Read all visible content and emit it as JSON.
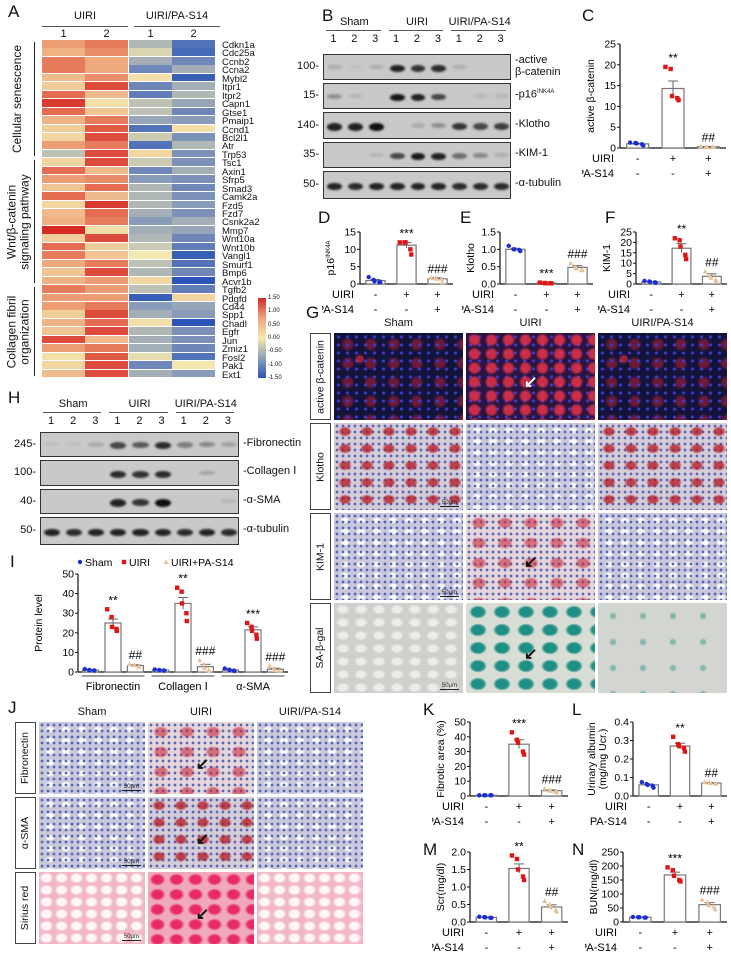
{
  "panels": {
    "A": "A",
    "B": "B",
    "C": "C",
    "D": "D",
    "E": "E",
    "F": "F",
    "G": "G",
    "H": "H",
    "I": "I",
    "J": "J",
    "K": "K",
    "L": "L",
    "M": "M",
    "N": "N"
  },
  "heatmap": {
    "groups": [
      "UIRI",
      "UIRI/PA-S14"
    ],
    "columns": [
      "1",
      "2",
      "1",
      "2"
    ],
    "sections": [
      {
        "label": "Cellular senescence",
        "rows": 14
      },
      {
        "label": "Wnt/β-catenin signaling pathway",
        "rows": 15
      },
      {
        "label": "Collagen fibril organization",
        "rows": 11
      }
    ],
    "colorbar": {
      "ticks": [
        "1.50",
        "1.00",
        "0.50",
        "0.00",
        "-0.50",
        "-1.00",
        "-1.50"
      ],
      "range": [
        -1.5,
        1.5
      ],
      "colors": [
        "#2b55b8",
        "#8fa0b8",
        "#f3e8b0",
        "#eea57a",
        "#d62a24"
      ]
    },
    "genes": [
      "Cdkn1a",
      "Cdc25a",
      "Ccnb2",
      "Ccna2",
      "Mybl2",
      "Itpr1",
      "Itpr2",
      "Capn1",
      "Gtse1",
      "Pmaip1",
      "Ccnd1",
      "Bcl2l1",
      "Atr",
      "Trp53",
      "Tsc1",
      "Axin1",
      "Sfrp5",
      "Smad3",
      "Camk2a",
      "Fzd5",
      "Fzd7",
      "Csnk2a2",
      "Mmp7",
      "Wnt10a",
      "Wnt10b",
      "Vangl1",
      "Smurf1",
      "Bmp6",
      "Acvr1b",
      "Tgfb2",
      "Pdgfd",
      "Cd44",
      "Spp1",
      "Chadl",
      "Egfr",
      "Jun",
      "Zmiz1",
      "Fosl2",
      "Pak1",
      "Ext1"
    ],
    "values": [
      [
        0.8,
        1.0,
        -0.5,
        -1.2
      ],
      [
        0.6,
        0.9,
        -0.2,
        -1.3
      ],
      [
        1.0,
        0.7,
        -0.6,
        -1.0
      ],
      [
        1.0,
        0.7,
        -1.0,
        -0.6
      ],
      [
        0.5,
        0.9,
        0.1,
        -1.4
      ],
      [
        0.3,
        1.3,
        -1.0,
        -0.6
      ],
      [
        1.1,
        0.5,
        -1.1,
        -0.5
      ],
      [
        1.4,
        0.1,
        -0.4,
        -0.7
      ],
      [
        1.1,
        0.4,
        -0.4,
        -1.0
      ],
      [
        0.6,
        1.0,
        -0.7,
        -0.8
      ],
      [
        0.3,
        1.2,
        -1.2,
        0.1
      ],
      [
        0.2,
        1.3,
        -0.3,
        -0.9
      ],
      [
        0.8,
        1.0,
        -1.2,
        -0.5
      ],
      [
        -0.4,
        1.3,
        0.2,
        -0.9
      ],
      [
        0.2,
        1.3,
        -0.3,
        -0.9
      ],
      [
        1.1,
        0.5,
        -1.0,
        -0.6
      ],
      [
        0.8,
        0.9,
        -0.8,
        -0.9
      ],
      [
        0.4,
        1.1,
        -0.5,
        -1.0
      ],
      [
        1.1,
        0.5,
        -0.5,
        -0.9
      ],
      [
        0.2,
        1.4,
        -0.5,
        -0.8
      ],
      [
        0.5,
        1.1,
        -0.6,
        -0.9
      ],
      [
        0.6,
        1.0,
        -0.8,
        -0.6
      ],
      [
        1.5,
        0.1,
        -0.6,
        -0.7
      ],
      [
        0.3,
        1.3,
        -0.5,
        -1.0
      ],
      [
        1.1,
        0.3,
        -0.3,
        -1.1
      ],
      [
        1.0,
        0.4,
        0.0,
        -1.4
      ],
      [
        0.7,
        1.0,
        -0.4,
        -1.2
      ],
      [
        0.4,
        1.3,
        -0.5,
        -1.0
      ],
      [
        0.6,
        0.8,
        0.2,
        -1.5
      ],
      [
        1.0,
        0.8,
        -0.4,
        -1.1
      ],
      [
        0.8,
        0.8,
        -1.4,
        0.2
      ],
      [
        0.8,
        1.0,
        -0.8,
        -0.7
      ],
      [
        0.3,
        1.3,
        -0.6,
        -0.8
      ],
      [
        0.6,
        1.1,
        0.1,
        -1.5
      ],
      [
        0.4,
        1.3,
        -0.5,
        -0.9
      ],
      [
        1.3,
        0.5,
        -0.6,
        -0.9
      ],
      [
        0.8,
        1.0,
        -0.6,
        -1.0
      ],
      [
        0.1,
        1.2,
        -0.1,
        -1.2
      ],
      [
        0.2,
        1.3,
        -1.0,
        0.0
      ],
      [
        0.5,
        1.3,
        -0.6,
        -0.8
      ]
    ]
  },
  "blotB": {
    "groups": [
      "Sham",
      "UIRI",
      "UIRI/PA-S14"
    ],
    "lanes": [
      "1",
      "2",
      "3",
      "1",
      "2",
      "3",
      "1",
      "2",
      "3"
    ],
    "rows": [
      {
        "mw": "100-",
        "label": "-active",
        "label2": "β-catenin",
        "bands": [
          0.15,
          0.05,
          0.15,
          0.9,
          0.8,
          0.85,
          0.15,
          0,
          0
        ]
      },
      {
        "mw": "15-",
        "label": "-p16",
        "sup": "INK4A",
        "bands": [
          0.3,
          0.1,
          0,
          0.95,
          0.9,
          0.7,
          0,
          0.1,
          0.1
        ]
      },
      {
        "mw": "140-",
        "label": "-Klotho",
        "bands": [
          0.9,
          0.9,
          1,
          0,
          0.15,
          0.3,
          0.8,
          0.7,
          0.75
        ]
      },
      {
        "mw": "35-",
        "label": "-KIM-1",
        "bands": [
          0,
          0,
          0.1,
          0.7,
          0.95,
          0.9,
          0.5,
          0.35,
          0.15
        ]
      },
      {
        "mw": "50-",
        "label": "-α-tubulin",
        "bands": [
          0.9,
          0.85,
          0.9,
          0.9,
          0.9,
          0.9,
          0.85,
          0.85,
          0.85
        ]
      }
    ]
  },
  "blotH": {
    "groups": [
      "Sham",
      "UIRI",
      "UIRI/PA-S14"
    ],
    "lanes": [
      "1",
      "2",
      "3",
      "1",
      "2",
      "3",
      "1",
      "2",
      "3"
    ],
    "rows": [
      {
        "mw": "245-",
        "label": "-Fibronectin",
        "bands": [
          0.05,
          0.05,
          0.15,
          0.7,
          0.6,
          0.85,
          0.4,
          0.35,
          0.2
        ]
      },
      {
        "mw": "100-",
        "label": "-Collagen Ⅰ",
        "bands": [
          0,
          0,
          0,
          0.85,
          0.8,
          0.85,
          0,
          0.2,
          0
        ]
      },
      {
        "mw": "40-",
        "label": "-α-SMA",
        "bands": [
          0,
          0,
          0,
          0.9,
          0.8,
          1,
          0,
          0,
          0.1
        ]
      },
      {
        "mw": "50-",
        "label": "-α-tubulin",
        "bands": [
          0.9,
          0.85,
          0.9,
          0.9,
          0.9,
          0.9,
          0.85,
          0.9,
          0.85
        ]
      }
    ]
  },
  "micrographG": {
    "columns": [
      "Sham",
      "UIRI",
      "UIRI/PA-S14"
    ],
    "rows": [
      "active β-catenin",
      "Klotho",
      "KIM-1",
      "SA-β-gal"
    ],
    "scale": "50μm"
  },
  "micrographJ": {
    "columns": [
      "Sham",
      "UIRI",
      "UIRI/PA-S14"
    ],
    "rows": [
      "Fibronectin",
      "α-SMA",
      "Sirius red"
    ],
    "scale": "50μm"
  },
  "colors": {
    "sham": "#1c2fd0",
    "uiri": "#e01515",
    "pa": "#e6c39a"
  },
  "chart_data": [
    {
      "id": "C",
      "type": "bar",
      "ylabel": "active β-catenin",
      "ylim": [
        0,
        25
      ],
      "yticks": [
        "0",
        "5",
        "10",
        "15",
        "20",
        "25"
      ],
      "means": [
        1.0,
        14.3,
        0.3
      ],
      "sem": [
        0.1,
        1.8,
        0.05
      ],
      "points": [
        [
          1.3,
          1.2,
          1.1,
          0.9,
          0.6
        ],
        [
          19.5,
          19,
          12.5,
          12,
          11.5
        ],
        [
          0.4,
          0.3,
          0.2,
          0.3,
          0.2
        ]
      ],
      "sig": [
        "",
        "**",
        "##"
      ],
      "conditions": [
        {
          "label": "UIRI",
          "values": [
            "-",
            "+",
            "+"
          ]
        },
        {
          "label": "PA-S14",
          "values": [
            "-",
            "-",
            "+"
          ]
        }
      ]
    },
    {
      "id": "D",
      "type": "bar",
      "ylabel": "p16",
      "ylabel_sup": "INK4A",
      "ylim": [
        0,
        15
      ],
      "yticks": [
        "0",
        "5",
        "10",
        "15"
      ],
      "means": [
        1.0,
        11.2,
        1.5
      ],
      "sem": [
        0.3,
        0.8,
        0.3
      ],
      "points": [
        [
          2,
          1.2,
          0.8,
          0.5,
          0.5
        ],
        [
          12,
          12,
          12,
          10,
          8.5
        ],
        [
          1.8,
          1.8,
          1.5,
          1.5,
          0.5
        ]
      ],
      "sig": [
        "",
        "***",
        "###"
      ],
      "conditions": [
        {
          "label": "UIRI",
          "values": [
            "-",
            "+",
            "+"
          ]
        },
        {
          "label": "PA-S14",
          "values": [
            "-",
            "-",
            "+"
          ]
        }
      ]
    },
    {
      "id": "E",
      "type": "bar",
      "ylabel": "Klotho",
      "ylim": [
        0,
        1.5
      ],
      "yticks": [
        "0.0",
        "0.5",
        "1.0",
        "1.5"
      ],
      "means": [
        1.0,
        0.03,
        0.48
      ],
      "sem": [
        0.03,
        0.005,
        0.05
      ],
      "points": [
        [
          1.1,
          1.0,
          1.0,
          0.98,
          0.95
        ],
        [
          0.04,
          0.03,
          0.02,
          0.02,
          0.02
        ],
        [
          0.6,
          0.5,
          0.45,
          0.4,
          0.4
        ]
      ],
      "sig": [
        "",
        "***",
        "###"
      ],
      "conditions": [
        {
          "label": "UIRI",
          "values": [
            "-",
            "+",
            "+"
          ]
        },
        {
          "label": "PA-S14",
          "values": [
            "-",
            "-",
            "+"
          ]
        }
      ]
    },
    {
      "id": "F",
      "type": "bar",
      "ylabel": "KIM-1",
      "ylim": [
        0,
        25
      ],
      "yticks": [
        "0",
        "5",
        "10",
        "15",
        "20",
        "25"
      ],
      "means": [
        1.0,
        17.2,
        3.7
      ],
      "sem": [
        0.15,
        2.2,
        1.2
      ],
      "points": [
        [
          1.5,
          1.2,
          1.0,
          0.8,
          0.6
        ],
        [
          22,
          21,
          18,
          14,
          12
        ],
        [
          6,
          4,
          3,
          2,
          1.5
        ]
      ],
      "sig": [
        "",
        "**",
        "##"
      ],
      "conditions": [
        {
          "label": "UIRI",
          "values": [
            "-",
            "+",
            "+"
          ]
        },
        {
          "label": "PA-S14",
          "values": [
            "-",
            "-",
            "+"
          ]
        }
      ]
    },
    {
      "id": "I",
      "type": "bar",
      "ylabel": "Protein level",
      "ylim": [
        0,
        50
      ],
      "yticks": [
        "0",
        "10",
        "20",
        "30",
        "40",
        "50"
      ],
      "categories": [
        "Fibronectin",
        "Collagen Ⅰ",
        "α-SMA"
      ],
      "legend": [
        "Sham",
        "UIRI",
        "UIRI+PA-S14"
      ],
      "legend_position": "top",
      "series": [
        {
          "name": "Sham",
          "means": [
            1.0,
            1.0,
            1.0
          ],
          "sem": [
            0.2,
            0.2,
            0.3
          ],
          "points": [
            [
              1.5,
              1,
              1,
              0.8,
              0.7
            ],
            [
              1.3,
              1,
              0.9,
              0.8,
              0.7
            ],
            [
              1.8,
              1.2,
              1,
              0.7,
              0.5
            ]
          ],
          "sig": [
            "",
            "",
            ""
          ]
        },
        {
          "name": "UIRI",
          "means": [
            25,
            35,
            21.5
          ],
          "sem": [
            2,
            3,
            1.5
          ],
          "points": [
            [
              32,
              28,
              23,
              22,
              21
            ],
            [
              43,
              41,
              35,
              30,
              26
            ],
            [
              25,
              23,
              21,
              19,
              17
            ]
          ],
          "sig": [
            "**",
            "**",
            "***"
          ]
        },
        {
          "name": "UIRI+PA-S14",
          "means": [
            3.3,
            2.7,
            1.4
          ],
          "sem": [
            0.4,
            1.2,
            0.5
          ],
          "points": [
            [
              4,
              3.5,
              3.5,
              3,
              2.5
            ],
            [
              6,
              4,
              2,
              1,
              0.5
            ],
            [
              3,
              2,
              1,
              0.5,
              0.5
            ]
          ],
          "sig": [
            "##",
            "###",
            "###"
          ]
        }
      ]
    },
    {
      "id": "K",
      "type": "bar",
      "ylabel": "Fibrotic area (%)",
      "ylim": [
        0,
        50
      ],
      "yticks": [
        "0",
        "10",
        "20",
        "30",
        "40",
        "50"
      ],
      "means": [
        0.5,
        35,
        3.6
      ],
      "sem": [
        0.05,
        3,
        0.5
      ],
      "points": [
        [
          0.5,
          0.5,
          0.5,
          0.5,
          0.5
        ],
        [
          43,
          38,
          36,
          30,
          28
        ],
        [
          5,
          4,
          3.5,
          3,
          2.5
        ]
      ],
      "sig": [
        "",
        "***",
        "###"
      ],
      "conditions": [
        {
          "label": "UIRI",
          "values": [
            "-",
            "+",
            "+"
          ]
        },
        {
          "label": "PA-S14",
          "values": [
            "-",
            "-",
            "+"
          ]
        }
      ]
    },
    {
      "id": "L",
      "type": "bar",
      "ylabel": "Urinary albumin",
      "ylabel2": "(mg/mg Ucr.)",
      "ylim": [
        0,
        0.4
      ],
      "yticks": [
        "0.0",
        "0.1",
        "0.2",
        "0.3",
        "0.4"
      ],
      "means": [
        0.06,
        0.27,
        0.07
      ],
      "sem": [
        0.005,
        0.015,
        0.002
      ],
      "points": [
        [
          0.075,
          0.065,
          0.06,
          0.055,
          0.045
        ],
        [
          0.32,
          0.28,
          0.27,
          0.26,
          0.24
        ],
        [
          0.075,
          0.072,
          0.07,
          0.068,
          0.066
        ]
      ],
      "sig": [
        "",
        "**",
        "##"
      ],
      "conditions": [
        {
          "label": "UIRI",
          "values": [
            "-",
            "+",
            "+"
          ]
        },
        {
          "label": "PA-S14",
          "values": [
            "-",
            "-",
            "+"
          ]
        }
      ]
    },
    {
      "id": "M",
      "type": "bar",
      "ylabel": "Scr(mg/dl)",
      "ylim": [
        0,
        2.0
      ],
      "yticks": [
        "0.0",
        "0.5",
        "1.0",
        "1.5",
        "2.0"
      ],
      "means": [
        0.13,
        1.53,
        0.43
      ],
      "sem": [
        0.01,
        0.13,
        0.06
      ],
      "points": [
        [
          0.15,
          0.14,
          0.13,
          0.12,
          0.12
        ],
        [
          1.9,
          1.8,
          1.5,
          1.3,
          1.2
        ],
        [
          0.6,
          0.5,
          0.45,
          0.35,
          0.3
        ]
      ],
      "sig": [
        "",
        "**",
        "##"
      ],
      "conditions": [
        {
          "label": "UIRI",
          "values": [
            "-",
            "+",
            "+"
          ]
        },
        {
          "label": "PA-S14",
          "values": [
            "-",
            "-",
            "+"
          ]
        }
      ]
    },
    {
      "id": "N",
      "type": "bar",
      "ylabel": "BUN(mg/dl)",
      "ylim": [
        0,
        250
      ],
      "yticks": [
        "0",
        "50",
        "100",
        "150",
        "200",
        "250"
      ],
      "means": [
        17,
        168,
        62
      ],
      "sem": [
        0.5,
        10,
        7
      ],
      "points": [
        [
          18,
          17,
          17,
          16,
          16
        ],
        [
          195,
          185,
          165,
          150,
          145
        ],
        [
          80,
          70,
          60,
          55,
          45
        ]
      ],
      "sig": [
        "",
        "***",
        "###"
      ],
      "conditions": [
        {
          "label": "UIRI",
          "values": [
            "-",
            "+",
            "+"
          ]
        },
        {
          "label": "PA-S14",
          "values": [
            "-",
            "-",
            "+"
          ]
        }
      ]
    }
  ]
}
